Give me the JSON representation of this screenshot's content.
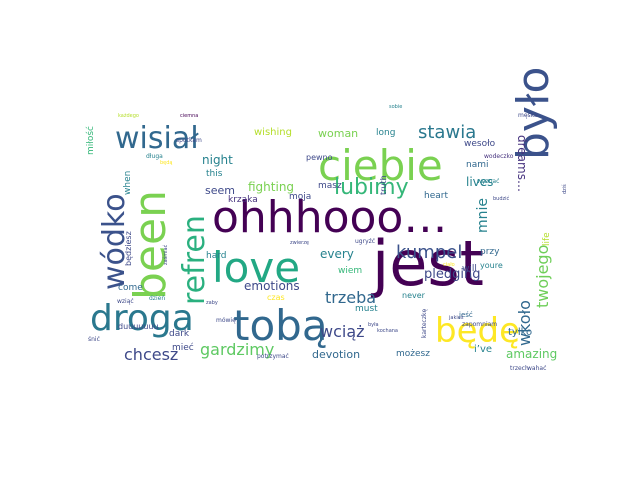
{
  "chart_data": {
    "type": "wordcloud",
    "words": [
      {
        "text": "jest",
        "color": "#440154"
      },
      {
        "text": "ohhhooo…",
        "color": "#440154"
      },
      {
        "text": "było",
        "color": "#3b528b"
      },
      {
        "text": "ciebie",
        "color": "#7ad151"
      },
      {
        "text": "been",
        "color": "#7ad151"
      },
      {
        "text": "love",
        "color": "#22a884"
      },
      {
        "text": "tobą",
        "color": "#31688e"
      },
      {
        "text": "droga",
        "color": "#2a788e"
      },
      {
        "text": "będę",
        "color": "#fde725"
      },
      {
        "text": "refren",
        "color": "#2ab07f"
      },
      {
        "text": "wódko",
        "color": "#3b528b"
      },
      {
        "text": "wisiał",
        "color": "#31688e"
      },
      {
        "text": "lubimy",
        "color": "#35b779"
      },
      {
        "text": "stawia",
        "color": "#2a788e"
      },
      {
        "text": "kumpel",
        "color": "#3b528b"
      },
      {
        "text": "gardzimy",
        "color": "#5ec962"
      },
      {
        "text": "chcesz",
        "color": "#3e4989"
      },
      {
        "text": "wciąż",
        "color": "#3e4989"
      },
      {
        "text": "trzeba",
        "color": "#31688e"
      },
      {
        "text": "wkoło",
        "color": "#31688e"
      },
      {
        "text": "twojego",
        "color": "#6ece58"
      },
      {
        "text": "mnie",
        "color": "#26828e"
      },
      {
        "text": "pledging",
        "color": "#3e4989"
      },
      {
        "text": "dreams…",
        "color": "#46327e"
      },
      {
        "text": "amazing",
        "color": "#5ec962"
      },
      {
        "text": "fighting",
        "color": "#7ad151"
      },
      {
        "text": "devotion",
        "color": "#31688e"
      },
      {
        "text": "emotions",
        "color": "#3e4989"
      },
      {
        "text": "woman",
        "color": "#7ad151"
      },
      {
        "text": "every",
        "color": "#26828e"
      },
      {
        "text": "lives",
        "color": "#26828e"
      },
      {
        "text": "night",
        "color": "#26828e"
      },
      {
        "text": "seem",
        "color": "#3e4989"
      },
      {
        "text": "wishing",
        "color": "#b5de2b"
      },
      {
        "text": "long",
        "color": "#26828e"
      },
      {
        "text": "moja",
        "color": "#3e4989"
      },
      {
        "text": "masz",
        "color": "#3e4989"
      },
      {
        "text": "krzaka",
        "color": "#46327e"
      },
      {
        "text": "nami",
        "color": "#31688e"
      },
      {
        "text": "wesoło",
        "color": "#3e4989"
      },
      {
        "text": "heart",
        "color": "#31688e"
      },
      {
        "text": "wiem",
        "color": "#35b779"
      },
      {
        "text": "will",
        "color": "#3e4989"
      },
      {
        "text": "never",
        "color": "#26828e"
      },
      {
        "text": "możesz",
        "color": "#31688e"
      },
      {
        "text": "i’ve",
        "color": "#26828e"
      },
      {
        "text": "tylko",
        "color": "#31688e"
      },
      {
        "text": "must",
        "color": "#26828e"
      },
      {
        "text": "czas",
        "color": "#fde725"
      },
      {
        "text": "mieć",
        "color": "#3e4989"
      },
      {
        "text": "dark",
        "color": "#3e4989"
      },
      {
        "text": "come",
        "color": "#31688e"
      },
      {
        "text": "hard",
        "color": "#26828e"
      },
      {
        "text": "this",
        "color": "#26828e"
      },
      {
        "text": "when",
        "color": "#26828e"
      },
      {
        "text": "będziesz",
        "color": "#3e4989"
      },
      {
        "text": "youre",
        "color": "#26828e"
      },
      {
        "text": "przy",
        "color": "#31688e"
      },
      {
        "text": "life",
        "color": "#b5de2b"
      },
      {
        "text": "pewno",
        "color": "#3e4989"
      },
      {
        "text": "truth",
        "color": "#3e4989"
      },
      {
        "text": "wodeczko",
        "color": "#46327e"
      },
      {
        "text": "miłość",
        "color": "#35b779"
      },
      {
        "text": "duuuuuuu",
        "color": "#3e4989"
      },
      {
        "text": "wziąć",
        "color": "#3e4989"
      },
      {
        "text": "dzień",
        "color": "#26828e"
      },
      {
        "text": "jeść",
        "color": "#31688e"
      },
      {
        "text": "ugryźć",
        "color": "#3e4989"
      },
      {
        "text": "spotkam",
        "color": "#3e4989"
      },
      {
        "text": "długa",
        "color": "#26828e"
      },
      {
        "text": "wyznać",
        "color": "#26828e"
      },
      {
        "text": "zapomniam",
        "color": "#3e4989"
      },
      {
        "text": "trzech",
        "color": "#3e4989"
      },
      {
        "text": "karteczkę",
        "color": "#3e4989"
      },
      {
        "text": "wahać",
        "color": "#3e4989"
      },
      {
        "text": "męska",
        "color": "#3e4989"
      },
      {
        "text": "każdego",
        "color": "#b5de2b"
      },
      {
        "text": "ciemna",
        "color": "#440154"
      },
      {
        "text": "będą",
        "color": "#fde725"
      },
      {
        "text": "sobie",
        "color": "#26828e"
      },
      {
        "text": "kochana",
        "color": "#3e4989"
      },
      {
        "text": "była",
        "color": "#3e4989"
      },
      {
        "text": "śnić",
        "color": "#3e4989"
      },
      {
        "text": "mówię",
        "color": "#3e4989"
      },
      {
        "text": "jakieś",
        "color": "#3e4989"
      },
      {
        "text": "dziś",
        "color": "#3e4989"
      },
      {
        "text": "potrzymać",
        "color": "#3e4989"
      },
      {
        "text": "zwierzę",
        "color": "#3e4989"
      },
      {
        "text": "ciało",
        "color": "#fde725"
      },
      {
        "text": "zaby",
        "color": "#3e4989"
      },
      {
        "text": "zaśmiać",
        "color": "#3e4989"
      },
      {
        "text": "budzić",
        "color": "#3e4989"
      }
    ]
  }
}
